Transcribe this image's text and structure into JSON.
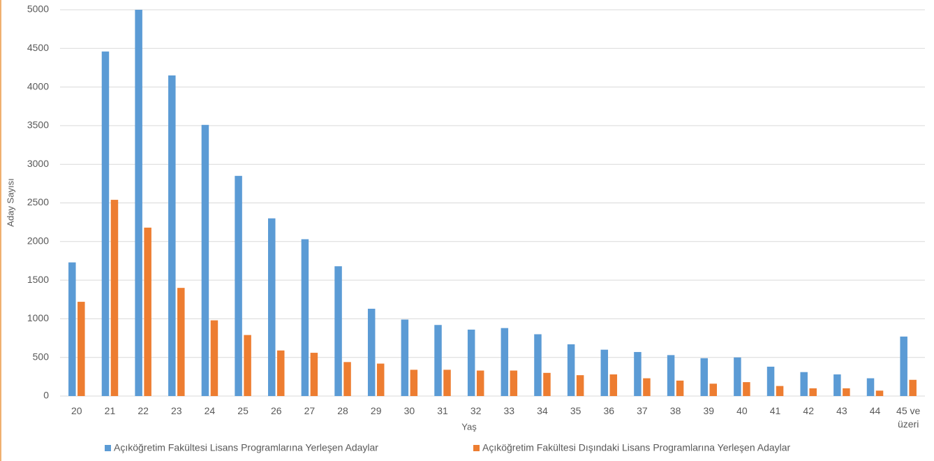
{
  "chart_data": {
    "type": "bar",
    "x_label": "Yaş",
    "y_label": "Aday Sayısı",
    "categories": [
      "20",
      "21",
      "22",
      "23",
      "24",
      "25",
      "26",
      "27",
      "28",
      "29",
      "30",
      "31",
      "32",
      "33",
      "34",
      "35",
      "36",
      "37",
      "38",
      "39",
      "40",
      "41",
      "42",
      "43",
      "44",
      "45 ve üzeri"
    ],
    "series": [
      {
        "name": "Açıköğretim Fakültesi Lisans Programlarına Yerleşen Adaylar",
        "color": "#5b9bd5",
        "values": [
          1730,
          4460,
          5000,
          4150,
          3510,
          2850,
          2300,
          2030,
          1680,
          1130,
          990,
          920,
          860,
          880,
          800,
          670,
          600,
          570,
          530,
          490,
          500,
          380,
          310,
          280,
          230,
          770
        ]
      },
      {
        "name": "Açıköğretim Fakültesi Dışındaki Lisans Programlarına Yerleşen Adaylar",
        "color": "#ed7d31",
        "values": [
          1220,
          2540,
          2180,
          1400,
          980,
          790,
          590,
          560,
          440,
          420,
          340,
          340,
          330,
          330,
          300,
          270,
          280,
          230,
          200,
          160,
          180,
          130,
          100,
          100,
          70,
          210
        ]
      }
    ],
    "ylim": [
      0,
      5000
    ],
    "yticks": [
      0,
      500,
      1000,
      1500,
      2000,
      2500,
      3000,
      3500,
      4000,
      4500,
      5000
    ],
    "grid": true
  }
}
